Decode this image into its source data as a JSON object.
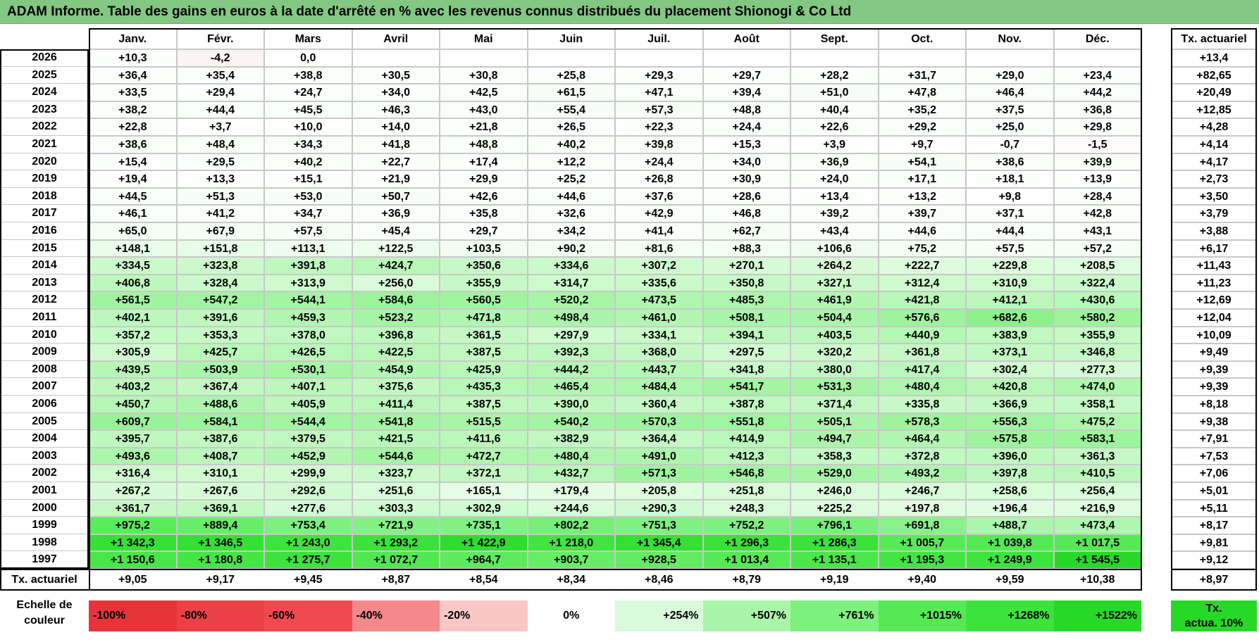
{
  "title": "ADAM Informe. Table des gains en euros à la date d'arrêté en % avec les revenus connus distribués du placement Shionogi & Co Ltd",
  "months": [
    "Janv.",
    "Févr.",
    "Mars",
    "Avril",
    "Mai",
    "Juin",
    "Juil.",
    "Août",
    "Sept.",
    "Oct.",
    "Nov.",
    "Déc."
  ],
  "actuarial_header": "Tx. actuariel",
  "rows": [
    {
      "year": "2026",
      "values": [
        "+10,3",
        "-4,2",
        "0,0",
        "",
        "",
        "",
        "",
        "",
        "",
        "",
        "",
        ""
      ],
      "actuarial": "+13,4"
    },
    {
      "year": "2025",
      "values": [
        "+36,4",
        "+35,4",
        "+38,8",
        "+30,5",
        "+30,8",
        "+25,8",
        "+29,3",
        "+29,7",
        "+28,2",
        "+31,7",
        "+29,0",
        "+23,4"
      ],
      "actuarial": "+82,65"
    },
    {
      "year": "2024",
      "values": [
        "+33,5",
        "+29,4",
        "+24,7",
        "+34,0",
        "+42,5",
        "+61,5",
        "+47,1",
        "+39,4",
        "+51,0",
        "+47,8",
        "+46,4",
        "+44,2"
      ],
      "actuarial": "+20,49"
    },
    {
      "year": "2023",
      "values": [
        "+38,2",
        "+44,4",
        "+45,5",
        "+46,3",
        "+43,0",
        "+55,4",
        "+57,3",
        "+48,8",
        "+40,4",
        "+35,2",
        "+37,5",
        "+36,8"
      ],
      "actuarial": "+12,85"
    },
    {
      "year": "2022",
      "values": [
        "+22,8",
        "+3,7",
        "+10,0",
        "+14,0",
        "+21,8",
        "+26,5",
        "+22,3",
        "+24,4",
        "+22,6",
        "+29,2",
        "+25,0",
        "+29,8"
      ],
      "actuarial": "+4,28"
    },
    {
      "year": "2021",
      "values": [
        "+38,6",
        "+48,4",
        "+34,3",
        "+41,8",
        "+48,8",
        "+40,2",
        "+39,8",
        "+15,3",
        "+3,9",
        "+9,7",
        "-0,7",
        "-1,5"
      ],
      "actuarial": "+4,14"
    },
    {
      "year": "2020",
      "values": [
        "+15,4",
        "+29,5",
        "+40,2",
        "+22,7",
        "+17,4",
        "+12,2",
        "+24,4",
        "+34,0",
        "+36,9",
        "+54,1",
        "+38,6",
        "+39,9"
      ],
      "actuarial": "+4,17"
    },
    {
      "year": "2019",
      "values": [
        "+19,4",
        "+13,3",
        "+15,1",
        "+21,9",
        "+29,9",
        "+25,2",
        "+26,8",
        "+30,9",
        "+24,0",
        "+17,1",
        "+18,1",
        "+13,9"
      ],
      "actuarial": "+2,73"
    },
    {
      "year": "2018",
      "values": [
        "+44,5",
        "+51,3",
        "+53,0",
        "+50,7",
        "+42,6",
        "+44,6",
        "+37,6",
        "+28,6",
        "+13,4",
        "+13,2",
        "+9,8",
        "+28,4"
      ],
      "actuarial": "+3,50"
    },
    {
      "year": "2017",
      "values": [
        "+46,1",
        "+41,2",
        "+34,7",
        "+36,9",
        "+35,8",
        "+32,6",
        "+42,9",
        "+46,8",
        "+39,2",
        "+39,7",
        "+37,1",
        "+42,8"
      ],
      "actuarial": "+3,79"
    },
    {
      "year": "2016",
      "values": [
        "+65,0",
        "+67,9",
        "+57,5",
        "+45,4",
        "+29,7",
        "+34,2",
        "+41,4",
        "+62,7",
        "+43,4",
        "+44,6",
        "+44,4",
        "+43,1"
      ],
      "actuarial": "+3,88"
    },
    {
      "year": "2015",
      "values": [
        "+148,1",
        "+151,8",
        "+113,1",
        "+122,5",
        "+103,5",
        "+90,2",
        "+81,6",
        "+88,3",
        "+106,6",
        "+75,2",
        "+57,5",
        "+57,2"
      ],
      "actuarial": "+6,17"
    },
    {
      "year": "2014",
      "values": [
        "+334,5",
        "+323,8",
        "+391,8",
        "+424,7",
        "+350,6",
        "+334,6",
        "+307,2",
        "+270,1",
        "+264,2",
        "+222,7",
        "+229,8",
        "+208,5"
      ],
      "actuarial": "+11,43"
    },
    {
      "year": "2013",
      "values": [
        "+406,8",
        "+328,4",
        "+313,9",
        "+256,0",
        "+355,9",
        "+314,7",
        "+335,6",
        "+350,8",
        "+327,1",
        "+312,4",
        "+310,9",
        "+322,4"
      ],
      "actuarial": "+11,23"
    },
    {
      "year": "2012",
      "values": [
        "+561,5",
        "+547,2",
        "+544,1",
        "+584,6",
        "+560,5",
        "+520,2",
        "+473,5",
        "+485,3",
        "+461,9",
        "+421,8",
        "+412,1",
        "+430,6"
      ],
      "actuarial": "+12,69"
    },
    {
      "year": "2011",
      "values": [
        "+402,1",
        "+391,6",
        "+459,3",
        "+523,2",
        "+471,8",
        "+498,4",
        "+461,0",
        "+508,1",
        "+504,4",
        "+576,6",
        "+682,6",
        "+580,2"
      ],
      "actuarial": "+12,04"
    },
    {
      "year": "2010",
      "values": [
        "+357,2",
        "+353,3",
        "+378,0",
        "+396,8",
        "+361,5",
        "+297,9",
        "+334,1",
        "+394,1",
        "+403,5",
        "+440,9",
        "+383,9",
        "+355,9"
      ],
      "actuarial": "+10,09"
    },
    {
      "year": "2009",
      "values": [
        "+305,9",
        "+425,7",
        "+426,5",
        "+422,5",
        "+387,5",
        "+392,3",
        "+368,0",
        "+297,5",
        "+320,2",
        "+361,8",
        "+373,1",
        "+346,8"
      ],
      "actuarial": "+9,49"
    },
    {
      "year": "2008",
      "values": [
        "+439,5",
        "+503,9",
        "+530,1",
        "+454,9",
        "+425,9",
        "+444,2",
        "+443,7",
        "+341,8",
        "+380,0",
        "+417,4",
        "+302,4",
        "+277,3"
      ],
      "actuarial": "+9,39"
    },
    {
      "year": "2007",
      "values": [
        "+403,2",
        "+367,4",
        "+407,1",
        "+375,6",
        "+435,3",
        "+465,4",
        "+484,4",
        "+541,7",
        "+531,3",
        "+480,4",
        "+420,8",
        "+474,0"
      ],
      "actuarial": "+9,39"
    },
    {
      "year": "2006",
      "values": [
        "+450,7",
        "+488,6",
        "+405,9",
        "+411,4",
        "+387,5",
        "+390,0",
        "+360,4",
        "+387,8",
        "+371,4",
        "+335,8",
        "+366,9",
        "+358,1"
      ],
      "actuarial": "+8,18"
    },
    {
      "year": "2005",
      "values": [
        "+609,7",
        "+584,1",
        "+544,4",
        "+541,8",
        "+515,5",
        "+540,2",
        "+570,3",
        "+551,8",
        "+505,1",
        "+578,3",
        "+556,3",
        "+475,2"
      ],
      "actuarial": "+9,38"
    },
    {
      "year": "2004",
      "values": [
        "+395,7",
        "+387,6",
        "+379,5",
        "+421,5",
        "+411,6",
        "+382,9",
        "+364,4",
        "+414,9",
        "+494,7",
        "+464,4",
        "+575,8",
        "+583,1"
      ],
      "actuarial": "+7,91"
    },
    {
      "year": "2003",
      "values": [
        "+493,6",
        "+408,7",
        "+452,9",
        "+544,6",
        "+472,7",
        "+480,4",
        "+491,0",
        "+412,3",
        "+358,3",
        "+372,8",
        "+396,0",
        "+361,3"
      ],
      "actuarial": "+7,53"
    },
    {
      "year": "2002",
      "values": [
        "+316,4",
        "+310,1",
        "+299,9",
        "+323,7",
        "+372,1",
        "+432,7",
        "+571,3",
        "+546,8",
        "+529,0",
        "+493,2",
        "+397,8",
        "+410,5"
      ],
      "actuarial": "+7,06"
    },
    {
      "year": "2001",
      "values": [
        "+267,2",
        "+267,6",
        "+292,6",
        "+251,6",
        "+165,1",
        "+179,4",
        "+205,8",
        "+251,8",
        "+246,0",
        "+246,7",
        "+258,6",
        "+256,4"
      ],
      "actuarial": "+5,01"
    },
    {
      "year": "2000",
      "values": [
        "+361,7",
        "+369,1",
        "+277,6",
        "+303,3",
        "+302,9",
        "+244,6",
        "+290,3",
        "+248,3",
        "+225,2",
        "+197,8",
        "+196,4",
        "+216,9"
      ],
      "actuarial": "+5,11"
    },
    {
      "year": "1999",
      "values": [
        "+975,2",
        "+889,4",
        "+753,4",
        "+721,9",
        "+735,1",
        "+802,2",
        "+751,3",
        "+752,2",
        "+796,1",
        "+691,8",
        "+488,7",
        "+473,4"
      ],
      "actuarial": "+8,17"
    },
    {
      "year": "1998",
      "values": [
        "+1 342,3",
        "+1 346,5",
        "+1 243,0",
        "+1 293,2",
        "+1 422,9",
        "+1 218,0",
        "+1 345,4",
        "+1 296,3",
        "+1 286,3",
        "+1 005,7",
        "+1 039,8",
        "+1 017,5"
      ],
      "actuarial": "+9,81"
    },
    {
      "year": "1997",
      "values": [
        "+1 150,6",
        "+1 180,8",
        "+1 275,7",
        "+1 072,7",
        "+964,7",
        "+903,7",
        "+928,5",
        "+1 013,4",
        "+1 135,1",
        "+1 195,3",
        "+1 249,9",
        "+1 545,5"
      ],
      "actuarial": "+9,12"
    }
  ],
  "footer": {
    "label": "Tx. actuariel",
    "values": [
      "+9,05",
      "+9,17",
      "+9,45",
      "+8,87",
      "+8,54",
      "+8,34",
      "+8,46",
      "+8,79",
      "+9,19",
      "+9,40",
      "+9,59",
      "+10,38"
    ],
    "overall": "+8,97"
  },
  "legend": {
    "label_line1": "Echelle de",
    "label_line2": "couleur",
    "scale": [
      {
        "text": "-100%",
        "value": -100,
        "color": "#e8333b"
      },
      {
        "text": "-80%",
        "value": -80,
        "color": "#ec4047"
      },
      {
        "text": "-60%",
        "value": -60,
        "color": "#f04a50"
      },
      {
        "text": "-40%",
        "value": -40,
        "color": "#f5888a"
      },
      {
        "text": "-20%",
        "value": -20,
        "color": "#fbc6c6"
      },
      {
        "text": "0%",
        "value": 0,
        "color": "#ffffff"
      },
      {
        "text": "+254%",
        "value": 254,
        "color": "#d9fbd9"
      },
      {
        "text": "+507%",
        "value": 507,
        "color": "#a9f5a9"
      },
      {
        "text": "+761%",
        "value": 761,
        "color": "#7ef07e"
      },
      {
        "text": "+1015%",
        "value": 1015,
        "color": "#55ea55"
      },
      {
        "text": "+1268%",
        "value": 1268,
        "color": "#3ce33c"
      },
      {
        "text": "+1522%",
        "value": 1522,
        "color": "#26d926"
      }
    ],
    "actuarial_line1": "Tx.",
    "actuarial_line2": "actua. 10%",
    "actuarial_color": "#26d926"
  },
  "chart_data": {
    "type": "heatmap",
    "title": "ADAM Informe. Table des gains en euros à la date d'arrêté en % avec les revenus connus distribués du placement Shionogi & Co Ltd",
    "x": [
      "Janv.",
      "Févr.",
      "Mars",
      "Avril",
      "Mai",
      "Juin",
      "Juil.",
      "Août",
      "Sept.",
      "Oct.",
      "Nov.",
      "Déc."
    ],
    "y": [
      "2026",
      "2025",
      "2024",
      "2023",
      "2022",
      "2021",
      "2020",
      "2019",
      "2018",
      "2017",
      "2016",
      "2015",
      "2014",
      "2013",
      "2012",
      "2011",
      "2010",
      "2009",
      "2008",
      "2007",
      "2006",
      "2005",
      "2004",
      "2003",
      "2002",
      "2001",
      "2000",
      "1999",
      "1998",
      "1997"
    ],
    "color_scale": {
      "min": -100,
      "max": 1522,
      "unit": "%"
    }
  }
}
